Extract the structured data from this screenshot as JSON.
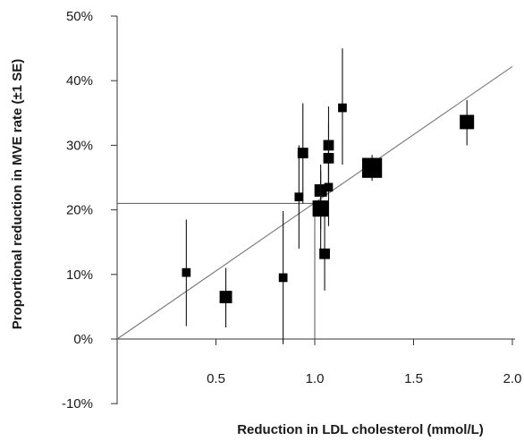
{
  "chart_data": {
    "type": "scatter",
    "xlabel": "Reduction in LDL cholesterol (mmol/L)",
    "ylabel": "Proportional reduction in MVE rate (±1 SE)",
    "xlim": [
      0.0,
      2.0
    ],
    "ylim": [
      -10,
      50
    ],
    "x_ticks": [
      0.5,
      1.0,
      1.5,
      2.0
    ],
    "x_tick_labels": [
      "0.5",
      "1.0",
      "1.5",
      "2.0"
    ],
    "y_ticks": [
      -10,
      0,
      10,
      20,
      30,
      40,
      50
    ],
    "y_tick_labels": [
      "-10%",
      "0%",
      "10%",
      "20%",
      "30%",
      "40%",
      "50%"
    ],
    "grid": false,
    "regression_line": {
      "x": [
        0.0,
        2.0
      ],
      "y": [
        0.0,
        42.2
      ]
    },
    "reference_line": {
      "x_end": 1.0,
      "y": 21.0
    },
    "points": [
      {
        "x": 0.35,
        "y": 10.3,
        "err_low": 2.0,
        "err_high": 18.5,
        "size": 1
      },
      {
        "x": 0.55,
        "y": 6.5,
        "err_low": 1.8,
        "err_high": 11.0,
        "size": 2
      },
      {
        "x": 0.84,
        "y": 9.5,
        "err_low": -0.8,
        "err_high": 19.8,
        "size": 1
      },
      {
        "x": 0.92,
        "y": 22.0,
        "err_low": 14.0,
        "err_high": 30.0,
        "size": 1
      },
      {
        "x": 0.94,
        "y": 28.8,
        "err_low": 21.0,
        "err_high": 36.5,
        "size": 1.5
      },
      {
        "x": 1.03,
        "y": 23.0,
        "err_low": 17.0,
        "err_high": 27.0,
        "size": 2
      },
      {
        "x": 1.03,
        "y": 20.2,
        "err_low": 13.0,
        "err_high": 26.0,
        "size": 3
      },
      {
        "x": 1.05,
        "y": 13.2,
        "err_low": 7.5,
        "err_high": 19.0,
        "size": 1.5
      },
      {
        "x": 1.07,
        "y": 30.0,
        "err_low": 24.0,
        "err_high": 36.0,
        "size": 1.5
      },
      {
        "x": 1.07,
        "y": 28.0,
        "err_low": 22.5,
        "err_high": 33.5,
        "size": 1.5
      },
      {
        "x": 1.07,
        "y": 23.5,
        "err_low": 17.5,
        "err_high": 28.0,
        "size": 1
      },
      {
        "x": 1.14,
        "y": 35.8,
        "err_low": 27.0,
        "err_high": 45.0,
        "size": 1
      },
      {
        "x": 1.29,
        "y": 26.5,
        "err_low": 24.5,
        "err_high": 28.5,
        "size": 4
      },
      {
        "x": 1.77,
        "y": 33.6,
        "err_low": 30.0,
        "err_high": 37.0,
        "size": 2.5
      }
    ]
  }
}
